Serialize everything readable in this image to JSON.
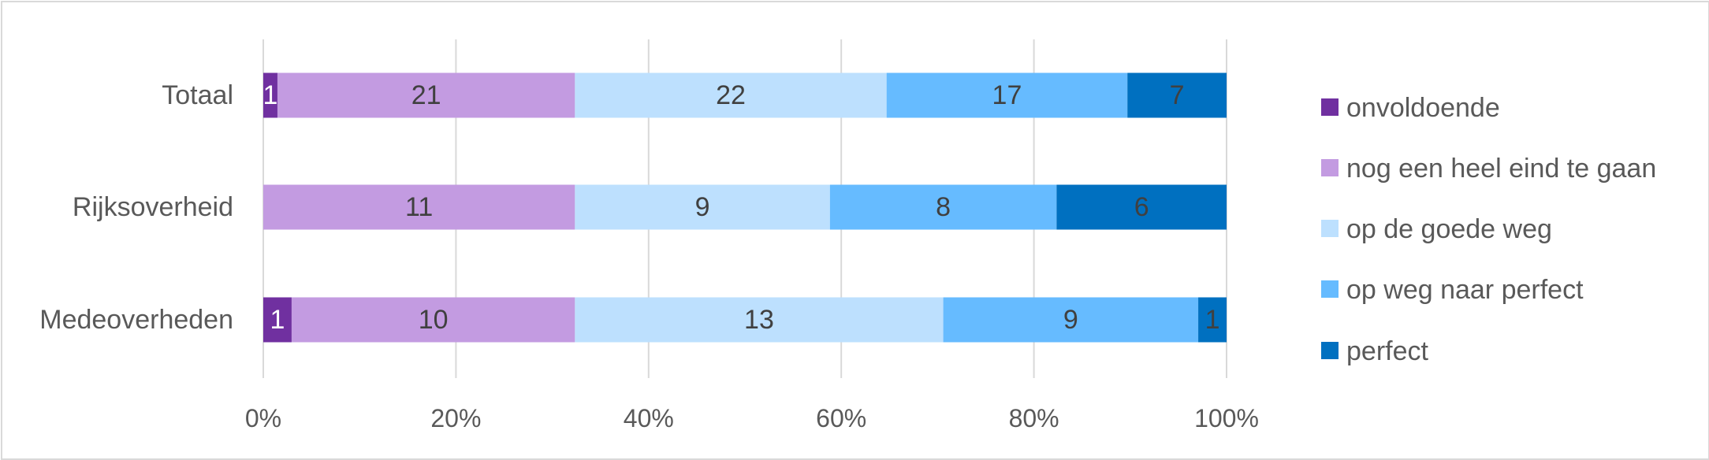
{
  "chart_data": {
    "type": "bar",
    "orientation": "horizontal",
    "stacked": "percent",
    "categories": [
      "Totaal",
      "Rijksoverheid",
      "Medeoverheden"
    ],
    "series": [
      {
        "name": "onvoldoende",
        "values": [
          1,
          0,
          1
        ],
        "color": "#7030a0"
      },
      {
        "name": "nog een heel eind te gaan",
        "values": [
          21,
          11,
          10
        ],
        "color": "#c39be1"
      },
      {
        "name": "op de goede weg",
        "values": [
          22,
          9,
          13
        ],
        "color": "#bde0fe"
      },
      {
        "name": "op weg naar perfect",
        "values": [
          17,
          8,
          9
        ],
        "color": "#66bbff"
      },
      {
        "name": "perfect",
        "values": [
          7,
          6,
          1
        ],
        "color": "#0070c0"
      }
    ],
    "xlim": [
      0,
      100
    ],
    "xticks": [
      "0%",
      "20%",
      "40%",
      "60%",
      "80%",
      "100%"
    ],
    "grid": true,
    "legend_position": "right"
  }
}
